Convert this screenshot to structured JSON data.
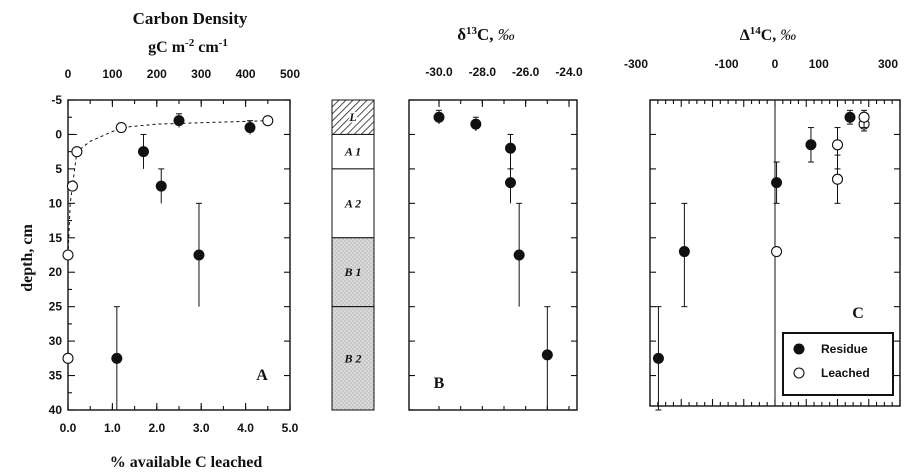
{
  "chart_data": [
    {
      "type": "scatter",
      "panel_label": "A",
      "title": "Carbon Density",
      "title_units": "gC m-2 cm-1",
      "top_axis": {
        "ticks": [
          "0",
          "100",
          "200",
          "300",
          "400",
          "500"
        ],
        "range": [
          0,
          500
        ]
      },
      "xlabel": "% available C leached",
      "x_ticks": [
        "0.0",
        "1.0",
        "2.0",
        "3.0",
        "4.0",
        "5.0"
      ],
      "xlim": [
        0,
        5
      ],
      "ylabel": "depth, cm",
      "y_ticks": [
        "-5",
        "0",
        "5",
        "10",
        "15",
        "20",
        "25",
        "30",
        "35",
        "40"
      ],
      "ylim": [
        -5,
        40
      ],
      "series": [
        {
          "style": "filled",
          "points": [
            {
              "x": 1.1,
              "y": 32.5,
              "err_y": [
                25,
                40
              ]
            },
            {
              "x": 1.7,
              "y": 2.5,
              "err_y": [
                0,
                5
              ]
            },
            {
              "x": 2.1,
              "y": 7.5,
              "err_y": [
                5,
                10
              ]
            },
            {
              "x": 2.5,
              "y": -2.0,
              "err_y": [
                -3.0,
                -1.0
              ]
            },
            {
              "x": 2.95,
              "y": 17.5,
              "err_y": [
                10,
                25
              ]
            },
            {
              "x": 4.1,
              "y": -1.0,
              "err_y": [
                -2.0,
                0
              ]
            }
          ]
        },
        {
          "style": "open",
          "points": [
            {
              "x": 0.0,
              "y": 32.5
            },
            {
              "x": 0.0,
              "y": 17.5
            },
            {
              "x": 0.1,
              "y": 7.5
            },
            {
              "x": 0.2,
              "y": 2.5
            },
            {
              "x": 1.2,
              "y": -1.0
            },
            {
              "x": 4.5,
              "y": -2.0
            }
          ]
        }
      ],
      "curve_dashed": [
        [
          0.0,
          17.5
        ],
        [
          0.05,
          10
        ],
        [
          0.1,
          7.5
        ],
        [
          0.2,
          2.5
        ],
        [
          0.5,
          1.0
        ],
        [
          1.2,
          -1.0
        ],
        [
          2.0,
          -1.5
        ],
        [
          3.5,
          -1.8
        ],
        [
          4.5,
          -2.0
        ]
      ],
      "curve_solid": [
        [
          0.0,
          40
        ],
        [
          0.0,
          0.0
        ],
        [
          0.2,
          0.0
        ]
      ]
    },
    {
      "type": "table",
      "horizons": [
        {
          "label": "L",
          "from": -5,
          "to": 0,
          "fill": "hatch"
        },
        {
          "label": "A 1",
          "from": 0,
          "to": 5,
          "fill": "white"
        },
        {
          "label": "A 2",
          "from": 5,
          "to": 15,
          "fill": "white"
        },
        {
          "label": "B 1",
          "from": 15,
          "to": 25,
          "fill": "stipple"
        },
        {
          "label": "B 2",
          "from": 25,
          "to": 40,
          "fill": "stipple"
        }
      ]
    },
    {
      "type": "scatter",
      "panel_label": "B",
      "title": "δ13C, ‰",
      "top_axis": {
        "ticks": [
          "-30.0",
          "-28.0",
          "-26.0",
          "-24.0"
        ],
        "range": [
          -30,
          -24
        ]
      },
      "ylim": [
        -5,
        40
      ],
      "series": [
        {
          "style": "filled",
          "points": [
            {
              "x": -30.0,
              "y": -2.5,
              "err_y": [
                -3.5,
                -1.5
              ]
            },
            {
              "x": -28.3,
              "y": -1.5,
              "err_y": [
                -2.5,
                -0.5
              ]
            },
            {
              "x": -26.7,
              "y": 2.0,
              "err_y": [
                0,
                5
              ]
            },
            {
              "x": -26.7,
              "y": 7.0,
              "err_y": [
                5,
                10
              ]
            },
            {
              "x": -26.3,
              "y": 17.5,
              "err_y": [
                10,
                25
              ]
            },
            {
              "x": -25.0,
              "y": 32.0,
              "err_y": [
                25,
                40
              ]
            }
          ]
        }
      ]
    },
    {
      "type": "scatter",
      "panel_label": "C",
      "title": "Δ14C, ‰",
      "top_axis": {
        "ticks": [
          "-300",
          "-100",
          "0",
          "100",
          "300"
        ],
        "range": [
          -400,
          400
        ]
      },
      "ylim": [
        -5,
        40
      ],
      "legend": {
        "position": "bottom-right",
        "entries": [
          "Residue",
          "Leached"
        ]
      },
      "series": [
        {
          "name": "Residue",
          "style": "filled",
          "points": [
            {
              "x": -373,
              "y": 32.5,
              "err_y": [
                25,
                40
              ]
            },
            {
              "x": -290,
              "y": 17.0,
              "err_y": [
                10,
                25
              ]
            },
            {
              "x": 5,
              "y": 7.0,
              "err_y": [
                4,
                10
              ]
            },
            {
              "x": 115,
              "y": 1.5,
              "err_y": [
                -1.0,
                4.0
              ]
            },
            {
              "x": 240,
              "y": -2.5,
              "err_y": [
                -3.5,
                -1.5
              ]
            }
          ]
        },
        {
          "name": "Leached",
          "style": "open",
          "points": [
            {
              "x": 5,
              "y": 17.0
            },
            {
              "x": 200,
              "y": 1.5,
              "err_y": [
                -1,
                5
              ]
            },
            {
              "x": 200,
              "y": 6.5,
              "err_y": [
                3,
                10
              ]
            },
            {
              "x": 285,
              "y": -1.5,
              "err_y": [
                -2.5,
                -0.5
              ]
            },
            {
              "x": 285,
              "y": -2.5,
              "err_y": [
                -3.5,
                -1.0
              ]
            }
          ]
        }
      ]
    }
  ]
}
